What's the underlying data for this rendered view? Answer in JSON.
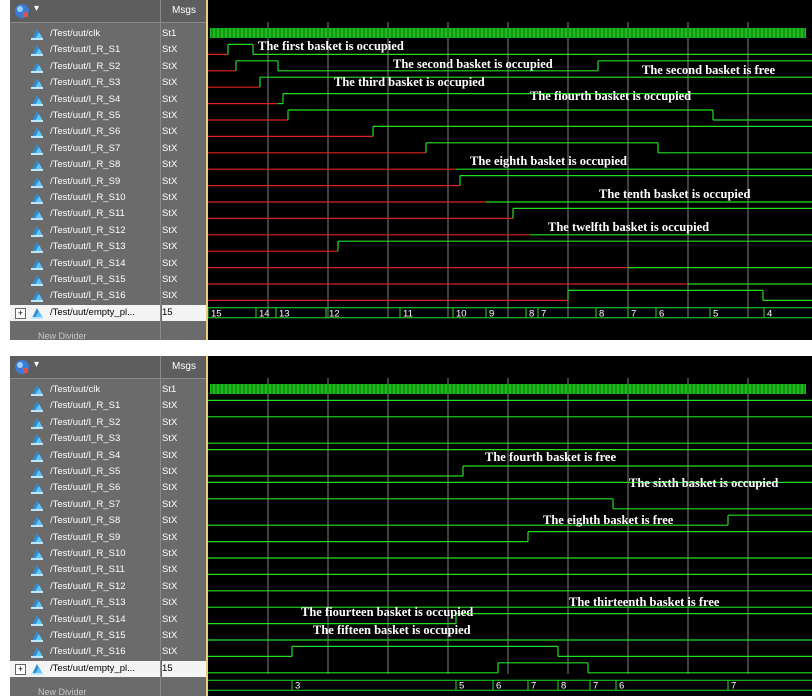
{
  "colors": {
    "wave": "#22dd22",
    "red": "#dd2222",
    "grid": "#808080",
    "text": "#ffffff"
  },
  "panels": [
    {
      "values_header": "Msgs",
      "divider": "New Divider",
      "signals": [
        {
          "name": "/Test/uut/clk",
          "value": "St1"
        },
        {
          "name": "/Test/uut/I_R_S1",
          "value": "StX"
        },
        {
          "name": "/Test/uut/I_R_S2",
          "value": "StX"
        },
        {
          "name": "/Test/uut/I_R_S3",
          "value": "StX"
        },
        {
          "name": "/Test/uut/I_R_S4",
          "value": "StX"
        },
        {
          "name": "/Test/uut/I_R_S5",
          "value": "StX"
        },
        {
          "name": "/Test/uut/I_R_S6",
          "value": "StX"
        },
        {
          "name": "/Test/uut/I_R_S7",
          "value": "StX"
        },
        {
          "name": "/Test/uut/I_R_S8",
          "value": "StX"
        },
        {
          "name": "/Test/uut/I_R_S9",
          "value": "StX"
        },
        {
          "name": "/Test/uut/I_R_S10",
          "value": "StX"
        },
        {
          "name": "/Test/uut/I_R_S11",
          "value": "StX"
        },
        {
          "name": "/Test/uut/I_R_S12",
          "value": "StX"
        },
        {
          "name": "/Test/uut/I_R_S13",
          "value": "StX"
        },
        {
          "name": "/Test/uut/I_R_S14",
          "value": "StX"
        },
        {
          "name": "/Test/uut/I_R_S15",
          "value": "StX"
        },
        {
          "name": "/Test/uut/I_R_S16",
          "value": "StX"
        }
      ],
      "bus": {
        "name": "/Test/uut/empty_pl...",
        "value": "15",
        "labels": [
          "15",
          "14",
          "13",
          "12",
          "11",
          "10",
          "9",
          "8",
          "7",
          "8",
          "7",
          "6",
          "5",
          "4"
        ]
      },
      "annotations": [
        "The first basket is occupied",
        "The second basket is occupied",
        "The second basket is free",
        "The third basket is occupied",
        "The fiourth basket is occupied",
        "The eighth basket is occupied",
        "The tenth basket is occupied",
        "The twelfth basket is occupied"
      ]
    },
    {
      "values_header": "Msgs",
      "divider": "New Divider",
      "signals": [
        {
          "name": "/Test/uut/clk",
          "value": "St1"
        },
        {
          "name": "/Test/uut/I_R_S1",
          "value": "StX"
        },
        {
          "name": "/Test/uut/I_R_S2",
          "value": "StX"
        },
        {
          "name": "/Test/uut/I_R_S3",
          "value": "StX"
        },
        {
          "name": "/Test/uut/I_R_S4",
          "value": "StX"
        },
        {
          "name": "/Test/uut/I_R_S5",
          "value": "StX"
        },
        {
          "name": "/Test/uut/I_R_S6",
          "value": "StX"
        },
        {
          "name": "/Test/uut/I_R_S7",
          "value": "StX"
        },
        {
          "name": "/Test/uut/I_R_S8",
          "value": "StX"
        },
        {
          "name": "/Test/uut/I_R_S9",
          "value": "StX"
        },
        {
          "name": "/Test/uut/I_R_S10",
          "value": "StX"
        },
        {
          "name": "/Test/uut/I_R_S11",
          "value": "StX"
        },
        {
          "name": "/Test/uut/I_R_S12",
          "value": "StX"
        },
        {
          "name": "/Test/uut/I_R_S13",
          "value": "StX"
        },
        {
          "name": "/Test/uut/I_R_S14",
          "value": "StX"
        },
        {
          "name": "/Test/uut/I_R_S15",
          "value": "StX"
        },
        {
          "name": "/Test/uut/I_R_S16",
          "value": "StX"
        }
      ],
      "bus": {
        "name": "/Test/uut/empty_pl...",
        "value": "15",
        "labels": [
          "3",
          "5",
          "6",
          "7",
          "8",
          "7",
          "6",
          "7"
        ]
      },
      "annotations": [
        "The fourth basket is free",
        "The sixth basket is occupied",
        "The eighth basket is free",
        "The thirteenth basket is free",
        "The fiourteen basket is occupied",
        "The fifteen basket is occupied"
      ]
    }
  ]
}
